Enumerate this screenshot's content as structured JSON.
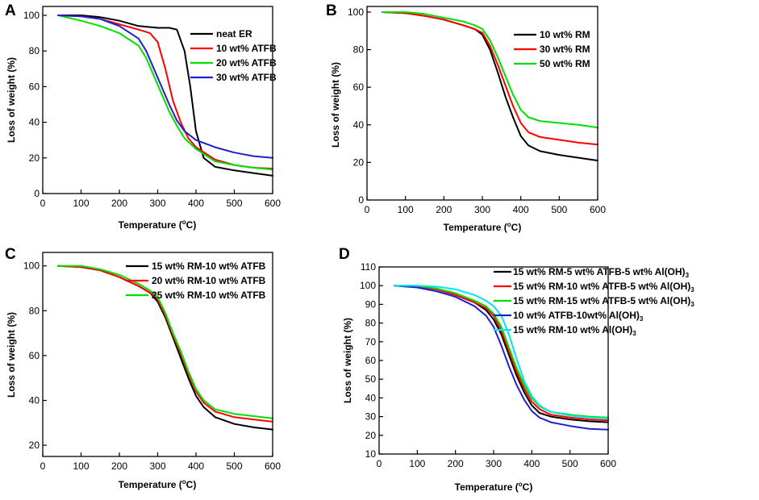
{
  "chart_data": [
    {
      "id": "A",
      "panel_label": "A",
      "type": "line",
      "xlabel": "Temperature (°C)",
      "xlabel_parts": [
        "Temperature (",
        "o",
        "C)"
      ],
      "ylabel": "Loss of weight (%)",
      "xlim": [
        0,
        600
      ],
      "ylim": [
        0,
        105
      ],
      "xticks": [
        0,
        100,
        200,
        300,
        400,
        500,
        600
      ],
      "yticks": [
        0,
        20,
        40,
        60,
        80,
        100
      ],
      "grid": false,
      "legend_position": "top-right",
      "series": [
        {
          "name": "neat ER",
          "color": "#000000",
          "x": [
            40,
            100,
            150,
            200,
            250,
            300,
            330,
            350,
            370,
            385,
            400,
            420,
            450,
            500,
            550,
            600
          ],
          "y": [
            100,
            100,
            99,
            97,
            94,
            93,
            93,
            92,
            80,
            60,
            35,
            20,
            15,
            13,
            11.5,
            10
          ]
        },
        {
          "name": "10 wt% ATFB",
          "color": "#ff0000",
          "x": [
            40,
            100,
            150,
            200,
            250,
            280,
            300,
            320,
            340,
            360,
            380,
            400,
            450,
            500,
            550,
            600
          ],
          "y": [
            100,
            99.5,
            98,
            95,
            92,
            90,
            85,
            70,
            52,
            40,
            31,
            26,
            19,
            16,
            14.5,
            14
          ]
        },
        {
          "name": "20 wt% ATFB",
          "color": "#00e000",
          "x": [
            40,
            100,
            150,
            200,
            250,
            270,
            290,
            310,
            330,
            350,
            370,
            400,
            450,
            500,
            550,
            600
          ],
          "y": [
            100,
            97,
            94,
            90,
            83,
            76,
            66,
            56,
            46,
            38,
            31,
            25,
            18,
            16,
            14.5,
            13.5
          ]
        },
        {
          "name": "30 wt% ATFB",
          "color": "#2020cc",
          "x": [
            40,
            100,
            150,
            200,
            250,
            270,
            290,
            310,
            330,
            350,
            370,
            400,
            450,
            500,
            550,
            600
          ],
          "y": [
            100,
            99.5,
            98,
            94,
            87,
            80,
            70,
            60,
            50,
            41,
            35,
            30,
            26,
            23,
            21,
            20
          ]
        }
      ]
    },
    {
      "id": "B",
      "panel_label": "B",
      "type": "line",
      "xlabel": "Temperature (°C)",
      "xlabel_parts": [
        "Temperature (",
        "o",
        "C)"
      ],
      "ylabel": "Loss of weight (%)",
      "xlim": [
        0,
        600
      ],
      "ylim": [
        0,
        103
      ],
      "xticks": [
        0,
        100,
        200,
        300,
        400,
        500,
        600
      ],
      "yticks": [
        0,
        20,
        40,
        60,
        80,
        100
      ],
      "grid": false,
      "legend_position": "top-right",
      "series": [
        {
          "name": "10 wt% RM",
          "color": "#000000",
          "x": [
            40,
            100,
            150,
            200,
            250,
            280,
            300,
            320,
            340,
            360,
            380,
            400,
            420,
            450,
            500,
            550,
            600
          ],
          "y": [
            100,
            99.5,
            98,
            96,
            93,
            91,
            88,
            80,
            68,
            55,
            44,
            34,
            29,
            26,
            24,
            22.5,
            21
          ]
        },
        {
          "name": "30 wt% RM",
          "color": "#ff0000",
          "x": [
            40,
            100,
            150,
            200,
            250,
            280,
            300,
            320,
            340,
            360,
            380,
            400,
            420,
            450,
            500,
            550,
            600
          ],
          "y": [
            100,
            99.5,
            98,
            96,
            93,
            91,
            89,
            82,
            72,
            61,
            50,
            41,
            36,
            33.5,
            32,
            30.5,
            29.5
          ]
        },
        {
          "name": "50 wt% RM",
          "color": "#00e000",
          "x": [
            40,
            100,
            150,
            200,
            250,
            280,
            300,
            320,
            340,
            360,
            380,
            400,
            420,
            450,
            500,
            550,
            600
          ],
          "y": [
            100,
            100,
            99,
            97,
            95,
            93,
            91,
            85,
            76,
            66,
            56,
            48,
            44,
            42,
            41,
            40,
            38.5
          ]
        }
      ]
    },
    {
      "id": "C",
      "panel_label": "C",
      "type": "line",
      "xlabel": "Temperature (°C)",
      "xlabel_parts": [
        "Temperature (",
        "o",
        "C)"
      ],
      "ylabel": "Loss of weight (%)",
      "xlim": [
        0,
        600
      ],
      "ylim": [
        15,
        106
      ],
      "xticks": [
        0,
        100,
        200,
        300,
        400,
        500,
        600
      ],
      "yticks": [
        20,
        40,
        60,
        80,
        100
      ],
      "grid": false,
      "legend_position": "top-right",
      "series": [
        {
          "name": "15 wt% RM-10 wt% ATFB",
          "color": "#000000",
          "x": [
            40,
            100,
            150,
            200,
            250,
            280,
            300,
            320,
            340,
            360,
            380,
            400,
            420,
            450,
            500,
            550,
            600
          ],
          "y": [
            100,
            99.5,
            98,
            95,
            91,
            88,
            84,
            77,
            68,
            59,
            50,
            42,
            37,
            32.5,
            29.5,
            28,
            27
          ]
        },
        {
          "name": "20 wt% RM-10 wt% ATFB",
          "color": "#ff0000",
          "x": [
            40,
            100,
            150,
            200,
            250,
            280,
            300,
            320,
            340,
            360,
            380,
            400,
            420,
            450,
            500,
            550,
            600
          ],
          "y": [
            100,
            99.5,
            98,
            95,
            91,
            88,
            85,
            78,
            69,
            61,
            52,
            44,
            39,
            35,
            32.5,
            31.5,
            30.5
          ]
        },
        {
          "name": "25 wt% RM-10 wt% ATFB",
          "color": "#00e000",
          "x": [
            40,
            100,
            150,
            200,
            250,
            280,
            300,
            320,
            340,
            360,
            380,
            400,
            420,
            450,
            500,
            550,
            600
          ],
          "y": [
            100,
            100,
            98.5,
            96,
            92,
            89,
            86,
            79,
            70,
            62,
            53,
            45,
            40,
            36,
            34,
            33,
            32
          ]
        }
      ]
    },
    {
      "id": "D",
      "panel_label": "D",
      "type": "line",
      "xlabel": "Temperature (°C)",
      "xlabel_parts": [
        "Temperature (",
        "o",
        "C)"
      ],
      "ylabel": "Loss of weight (%)",
      "xlim": [
        0,
        600
      ],
      "ylim": [
        10,
        110
      ],
      "xticks": [
        0,
        100,
        200,
        300,
        400,
        500,
        600
      ],
      "yticks": [
        10,
        20,
        30,
        40,
        50,
        60,
        70,
        80,
        90,
        100,
        110
      ],
      "grid": false,
      "legend_position": "top-right",
      "series": [
        {
          "name": "15 wt% RM-5 wt% ATFB-5 wt% Al(OH)",
          "subscript": "3",
          "color": "#000000",
          "x": [
            40,
            100,
            150,
            200,
            250,
            280,
            300,
            320,
            340,
            360,
            380,
            400,
            420,
            450,
            500,
            550,
            600
          ],
          "y": [
            100,
            99.5,
            98,
            95,
            91,
            87,
            82,
            74,
            63,
            52,
            43,
            36,
            32,
            30,
            28.5,
            27.5,
            27
          ]
        },
        {
          "name": "15 wt% RM-10 wt% ATFB-5 wt% Al(OH)",
          "subscript": "3",
          "color": "#ff0000",
          "x": [
            40,
            100,
            150,
            200,
            250,
            280,
            300,
            320,
            340,
            360,
            380,
            400,
            420,
            450,
            500,
            550,
            600
          ],
          "y": [
            100,
            99.5,
            98,
            95,
            91,
            88,
            84,
            76,
            65,
            54,
            45,
            38,
            34,
            31,
            29.5,
            28.5,
            28
          ]
        },
        {
          "name": "15 wt% RM-15 wt% ATFB-5 wt% Al(OH)",
          "subscript": "3",
          "color": "#00e000",
          "x": [
            40,
            100,
            150,
            200,
            250,
            280,
            300,
            320,
            340,
            360,
            380,
            400,
            420,
            450,
            500,
            550,
            600
          ],
          "y": [
            100,
            100,
            98.5,
            96,
            92,
            89,
            85,
            78,
            67,
            56,
            47,
            40,
            35.5,
            32.5,
            31,
            30,
            29.5
          ]
        },
        {
          "name": "10 wt% ATFB-10wt% Al(OH)",
          "subscript": "3",
          "color": "#2020cc",
          "x": [
            40,
            100,
            150,
            200,
            250,
            280,
            300,
            320,
            340,
            360,
            380,
            400,
            420,
            450,
            500,
            550,
            600
          ],
          "y": [
            100,
            99,
            97,
            94,
            89,
            84,
            78,
            68,
            57,
            47,
            39,
            33,
            29.5,
            27,
            25,
            23.5,
            23
          ]
        },
        {
          "name": "15 wt% RM-10 wt% Al(OH)",
          "subscript": "3",
          "color": "#00e5ee",
          "x": [
            40,
            100,
            150,
            200,
            250,
            280,
            300,
            320,
            340,
            360,
            380,
            400,
            420,
            450,
            500,
            550,
            600
          ],
          "y": [
            100,
            100,
            99.5,
            98,
            95,
            92,
            89,
            84,
            74,
            61,
            49,
            41,
            36,
            32.5,
            30.5,
            29.5,
            29
          ]
        }
      ]
    }
  ]
}
